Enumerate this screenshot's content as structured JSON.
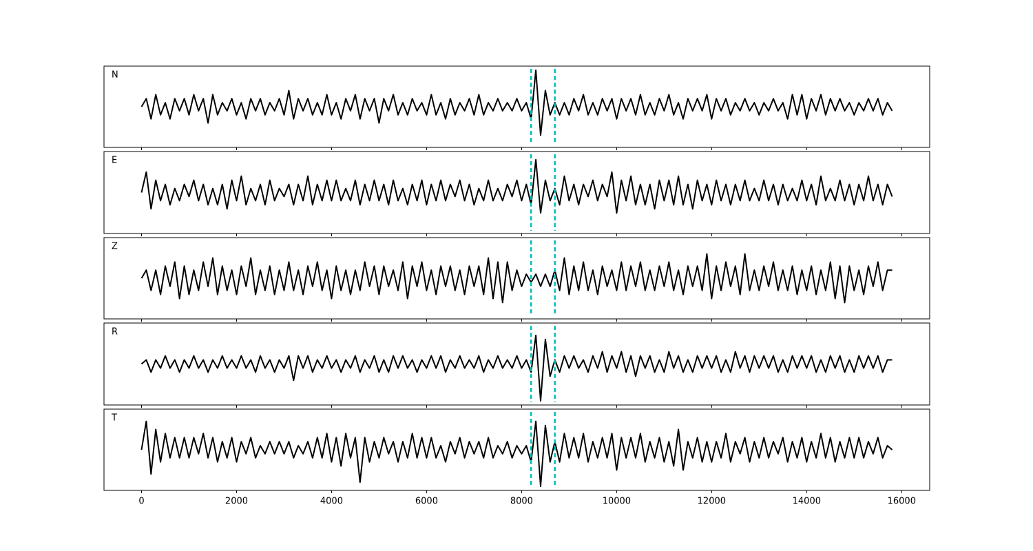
{
  "chart_data": {
    "type": "line",
    "layout": "stacked",
    "color": "#000000",
    "x": [
      0,
      100,
      200,
      300,
      400,
      500,
      600,
      700,
      800,
      900,
      1000,
      1100,
      1200,
      1300,
      1400,
      1500,
      1600,
      1700,
      1800,
      1900,
      2000,
      2100,
      2200,
      2300,
      2400,
      2500,
      2600,
      2700,
      2800,
      2900,
      3000,
      3100,
      3200,
      3300,
      3400,
      3500,
      3600,
      3700,
      3800,
      3900,
      4000,
      4100,
      4200,
      4300,
      4400,
      4500,
      4600,
      4700,
      4800,
      4900,
      5000,
      5100,
      5200,
      5300,
      5400,
      5500,
      5600,
      5700,
      5800,
      5900,
      6000,
      6100,
      6200,
      6300,
      6400,
      6500,
      6600,
      6700,
      6800,
      6900,
      7000,
      7100,
      7200,
      7300,
      7400,
      7500,
      7600,
      7700,
      7800,
      7900,
      8000,
      8100,
      8200,
      8300,
      8400,
      8500,
      8600,
      8700,
      8800,
      8900,
      9000,
      9100,
      9200,
      9300,
      9400,
      9500,
      9600,
      9700,
      9800,
      9900,
      10000,
      10100,
      10200,
      10300,
      10400,
      10500,
      10600,
      10700,
      10800,
      10900,
      11000,
      11100,
      11200,
      11300,
      11400,
      11500,
      11600,
      11700,
      11800,
      11900,
      12000,
      12100,
      12200,
      12300,
      12400,
      12500,
      12600,
      12700,
      12800,
      12900,
      13000,
      13100,
      13200,
      13300,
      13400,
      13500,
      13600,
      13700,
      13800,
      13900,
      14000,
      14100,
      14200,
      14300,
      14400,
      14500,
      14600,
      14700,
      14800,
      14900,
      15000,
      15100,
      15200,
      15300,
      15400,
      15500,
      15600,
      15700,
      15800
    ],
    "series": [
      {
        "name": "N",
        "values": [
          0,
          2,
          -3,
          3,
          -2,
          1,
          -3,
          2,
          -1,
          2,
          -2,
          3,
          -1,
          2,
          -4,
          3,
          -2,
          1,
          -1,
          2,
          -2,
          1,
          -3,
          2,
          -1,
          2,
          -2,
          1,
          -1,
          2,
          -2,
          4,
          -3,
          2,
          -1,
          2,
          -2,
          1,
          -2,
          3,
          -2,
          1,
          -3,
          2,
          -1,
          3,
          -3,
          2,
          -1,
          2,
          -4,
          2,
          -1,
          3,
          -2,
          1,
          -2,
          2,
          -1,
          1,
          -2,
          3,
          -2,
          1,
          -3,
          2,
          -2,
          1,
          -1,
          2,
          -2,
          3,
          -2,
          1,
          -1,
          2,
          -1,
          1,
          -1,
          2,
          -1,
          1,
          -3,
          9,
          -7,
          4,
          -2,
          1,
          -2,
          1,
          -2,
          2,
          -1,
          3,
          -2,
          1,
          -2,
          2,
          -1,
          2,
          -3,
          2,
          -1,
          2,
          -2,
          3,
          -2,
          1,
          -2,
          2,
          -1,
          3,
          -2,
          1,
          -3,
          2,
          -1,
          2,
          -1,
          3,
          -3,
          2,
          -1,
          2,
          -2,
          1,
          -1,
          2,
          -1,
          1,
          -2,
          1,
          -1,
          2,
          -1,
          1,
          -3,
          3,
          -2,
          3,
          -3,
          2,
          -1,
          3,
          -2,
          2,
          -1,
          2,
          -1,
          1,
          -2,
          1,
          -1,
          2,
          -1,
          2,
          -2,
          1,
          -1
        ]
      },
      {
        "name": "E",
        "values": [
          0,
          5,
          -4,
          3,
          -2,
          2,
          -3,
          1,
          -2,
          2,
          -1,
          3,
          -2,
          2,
          -3,
          1,
          -3,
          2,
          -4,
          3,
          -2,
          4,
          -3,
          1,
          -2,
          2,
          -3,
          3,
          -2,
          1,
          -1,
          2,
          -3,
          2,
          -2,
          4,
          -3,
          2,
          -2,
          3,
          -2,
          3,
          -2,
          1,
          -2,
          3,
          -3,
          2,
          -2,
          3,
          -2,
          2,
          -3,
          3,
          -2,
          1,
          -3,
          2,
          -2,
          3,
          -3,
          2,
          -2,
          3,
          -2,
          2,
          -1,
          3,
          -2,
          2,
          -3,
          1,
          -2,
          3,
          -2,
          1,
          -2,
          2,
          -1,
          3,
          -2,
          2,
          -3,
          8,
          -5,
          3,
          -2,
          1,
          -3,
          4,
          -2,
          2,
          -3,
          2,
          -1,
          3,
          -2,
          2,
          -1,
          5,
          -5,
          3,
          -2,
          4,
          -3,
          2,
          -3,
          2,
          -4,
          3,
          -2,
          3,
          -3,
          4,
          -3,
          2,
          -4,
          3,
          -2,
          2,
          -3,
          3,
          -2,
          2,
          -3,
          2,
          -2,
          3,
          -2,
          1,
          -2,
          3,
          -2,
          2,
          -3,
          2,
          -2,
          1,
          -2,
          3,
          -2,
          2,
          -3,
          4,
          -2,
          1,
          -2,
          3,
          -2,
          2,
          -3,
          2,
          -2,
          4,
          -2,
          2,
          -3,
          2,
          -1
        ]
      },
      {
        "name": "Z",
        "values": [
          0,
          2,
          -3,
          2,
          -4,
          3,
          -2,
          4,
          -5,
          3,
          -4,
          2,
          -3,
          4,
          -2,
          5,
          -4,
          3,
          -3,
          2,
          -4,
          3,
          -2,
          5,
          -4,
          2,
          -3,
          3,
          -4,
          2,
          -3,
          4,
          -3,
          2,
          -4,
          3,
          -2,
          4,
          -3,
          2,
          -5,
          3,
          -3,
          2,
          -4,
          2,
          -3,
          4,
          -2,
          3,
          -4,
          3,
          -2,
          2,
          -3,
          4,
          -5,
          3,
          -2,
          4,
          -3,
          2,
          -4,
          3,
          -2,
          3,
          -3,
          2,
          -4,
          3,
          -2,
          3,
          -4,
          5,
          -5,
          4,
          -6,
          4,
          -3,
          2,
          -2,
          1,
          -1,
          1,
          -2,
          1,
          -2,
          2,
          -3,
          5,
          -4,
          3,
          -3,
          4,
          -3,
          2,
          -4,
          3,
          -2,
          2,
          -3,
          4,
          -3,
          3,
          -2,
          4,
          -3,
          2,
          -3,
          3,
          -2,
          4,
          -3,
          2,
          -4,
          3,
          -2,
          3,
          -3,
          6,
          -5,
          3,
          -3,
          4,
          -2,
          3,
          -4,
          6,
          -3,
          2,
          -3,
          3,
          -2,
          4,
          -3,
          2,
          -3,
          3,
          -4,
          2,
          -3,
          3,
          -4,
          2,
          -3,
          4,
          -5,
          3,
          -6,
          3,
          -3,
          2,
          -4,
          3,
          -2,
          4,
          -3,
          2,
          2
        ]
      },
      {
        "name": "R",
        "values": [
          0,
          1,
          -2,
          1,
          -1,
          2,
          -1,
          1,
          -2,
          1,
          -1,
          2,
          -1,
          1,
          -2,
          1,
          -1,
          2,
          -1,
          1,
          -1,
          2,
          -1,
          1,
          -2,
          2,
          -1,
          1,
          -2,
          1,
          -1,
          2,
          -4,
          2,
          -1,
          2,
          -2,
          1,
          -1,
          2,
          -1,
          1,
          -2,
          1,
          -1,
          2,
          -2,
          1,
          -1,
          2,
          -2,
          1,
          -2,
          2,
          -1,
          2,
          -1,
          1,
          -2,
          1,
          -1,
          2,
          -1,
          2,
          -2,
          1,
          -1,
          2,
          -1,
          1,
          -1,
          2,
          -2,
          1,
          -1,
          2,
          -1,
          1,
          -1,
          2,
          -1,
          1,
          -2,
          7,
          -9,
          6,
          -3,
          1,
          -2,
          2,
          -1,
          2,
          -1,
          1,
          -2,
          2,
          -1,
          3,
          -2,
          2,
          -1,
          3,
          -2,
          2,
          -3,
          2,
          -1,
          2,
          -2,
          1,
          -2,
          3,
          -1,
          2,
          -2,
          1,
          -2,
          2,
          -1,
          2,
          -1,
          2,
          -2,
          1,
          -2,
          3,
          -1,
          2,
          -2,
          2,
          -1,
          2,
          -1,
          2,
          -2,
          1,
          -2,
          2,
          -1,
          2,
          -1,
          2,
          -2,
          1,
          -2,
          2,
          -1,
          2,
          -2,
          1,
          -2,
          2,
          -1,
          2,
          -1,
          2,
          -2,
          1,
          1
        ]
      },
      {
        "name": "T",
        "values": [
          0,
          7,
          -6,
          5,
          -3,
          4,
          -2,
          3,
          -2,
          3,
          -2,
          3,
          -1,
          4,
          -2,
          3,
          -3,
          2,
          -2,
          3,
          -3,
          2,
          -1,
          3,
          -2,
          1,
          -1,
          2,
          -1,
          2,
          -1,
          2,
          -2,
          1,
          -1,
          2,
          -2,
          3,
          -2,
          4,
          -3,
          3,
          -4,
          4,
          -2,
          3,
          -8,
          3,
          -3,
          2,
          -2,
          3,
          -1,
          2,
          -3,
          2,
          -2,
          4,
          -2,
          3,
          -2,
          3,
          -2,
          1,
          -3,
          2,
          -1,
          3,
          -2,
          2,
          -1,
          2,
          -2,
          3,
          -2,
          1,
          -1,
          2,
          -2,
          1,
          -1,
          1,
          -3,
          7,
          -9,
          6,
          -3,
          2,
          -3,
          4,
          -2,
          3,
          -2,
          4,
          -3,
          2,
          -2,
          3,
          -2,
          4,
          -5,
          3,
          -2,
          3,
          -2,
          4,
          -3,
          2,
          -2,
          3,
          -3,
          2,
          -4,
          5,
          -5,
          2,
          -2,
          3,
          -3,
          2,
          -3,
          2,
          -2,
          4,
          -3,
          2,
          -1,
          3,
          -3,
          2,
          -2,
          3,
          -2,
          2,
          -1,
          3,
          -3,
          2,
          -2,
          3,
          -3,
          2,
          -2,
          4,
          -2,
          3,
          -3,
          2,
          -2,
          3,
          -2,
          3,
          -2,
          2,
          -1,
          3,
          -2,
          1,
          0
        ]
      }
    ],
    "xlim": [
      -790,
      16590
    ],
    "xticks": [
      0,
      2000,
      4000,
      6000,
      8000,
      10000,
      12000,
      14000,
      16000
    ],
    "ylim": [
      -10,
      10
    ],
    "vlines": [
      8200,
      8700
    ],
    "vline_color": "#00bfbf"
  }
}
